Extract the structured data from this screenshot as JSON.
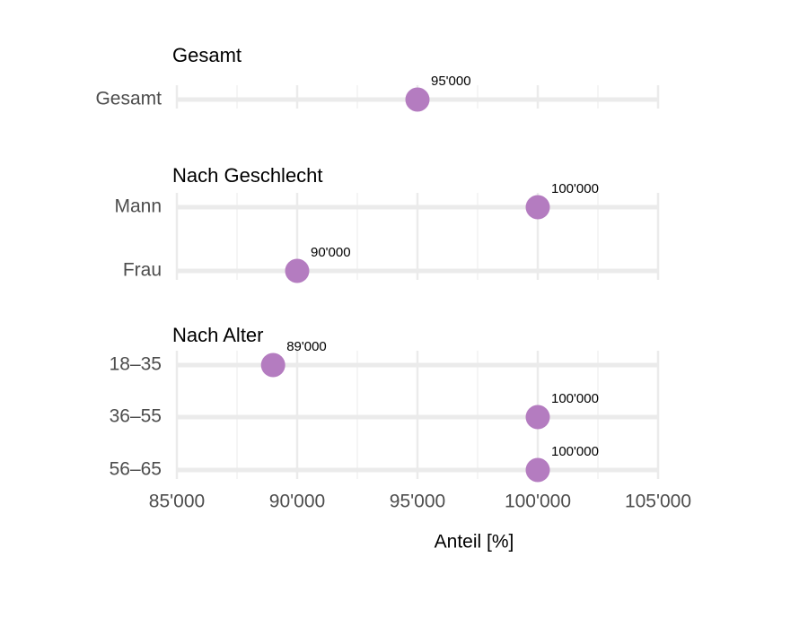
{
  "chart_data": {
    "type": "dot",
    "color": "#b47cc0",
    "grid": true,
    "xlabel": "Anteil [%]",
    "xlim": [
      85000,
      105000
    ],
    "xticks": [
      {
        "value": 85000,
        "label": "85'000"
      },
      {
        "value": 90000,
        "label": "90'000"
      },
      {
        "value": 95000,
        "label": "95'000"
      },
      {
        "value": 100000,
        "label": "100'000"
      },
      {
        "value": 105000,
        "label": "105'000"
      }
    ],
    "xminor": [
      87500,
      92500,
      97500,
      102500
    ],
    "facets": [
      {
        "title": "Gesamt",
        "categories": [
          "Gesamt"
        ],
        "values": [
          95000
        ],
        "value_labels": [
          "95'000"
        ]
      },
      {
        "title": "Nach Geschlecht",
        "categories": [
          "Mann",
          "Frau"
        ],
        "values": [
          100000,
          90000
        ],
        "value_labels": [
          "100'000",
          "90'000"
        ]
      },
      {
        "title": "Nach Alter",
        "categories": [
          "18–35",
          "36–55",
          "56–65"
        ],
        "values": [
          89000,
          100000,
          100000
        ],
        "value_labels": [
          "89'000",
          "100'000",
          "100'000"
        ]
      }
    ]
  }
}
